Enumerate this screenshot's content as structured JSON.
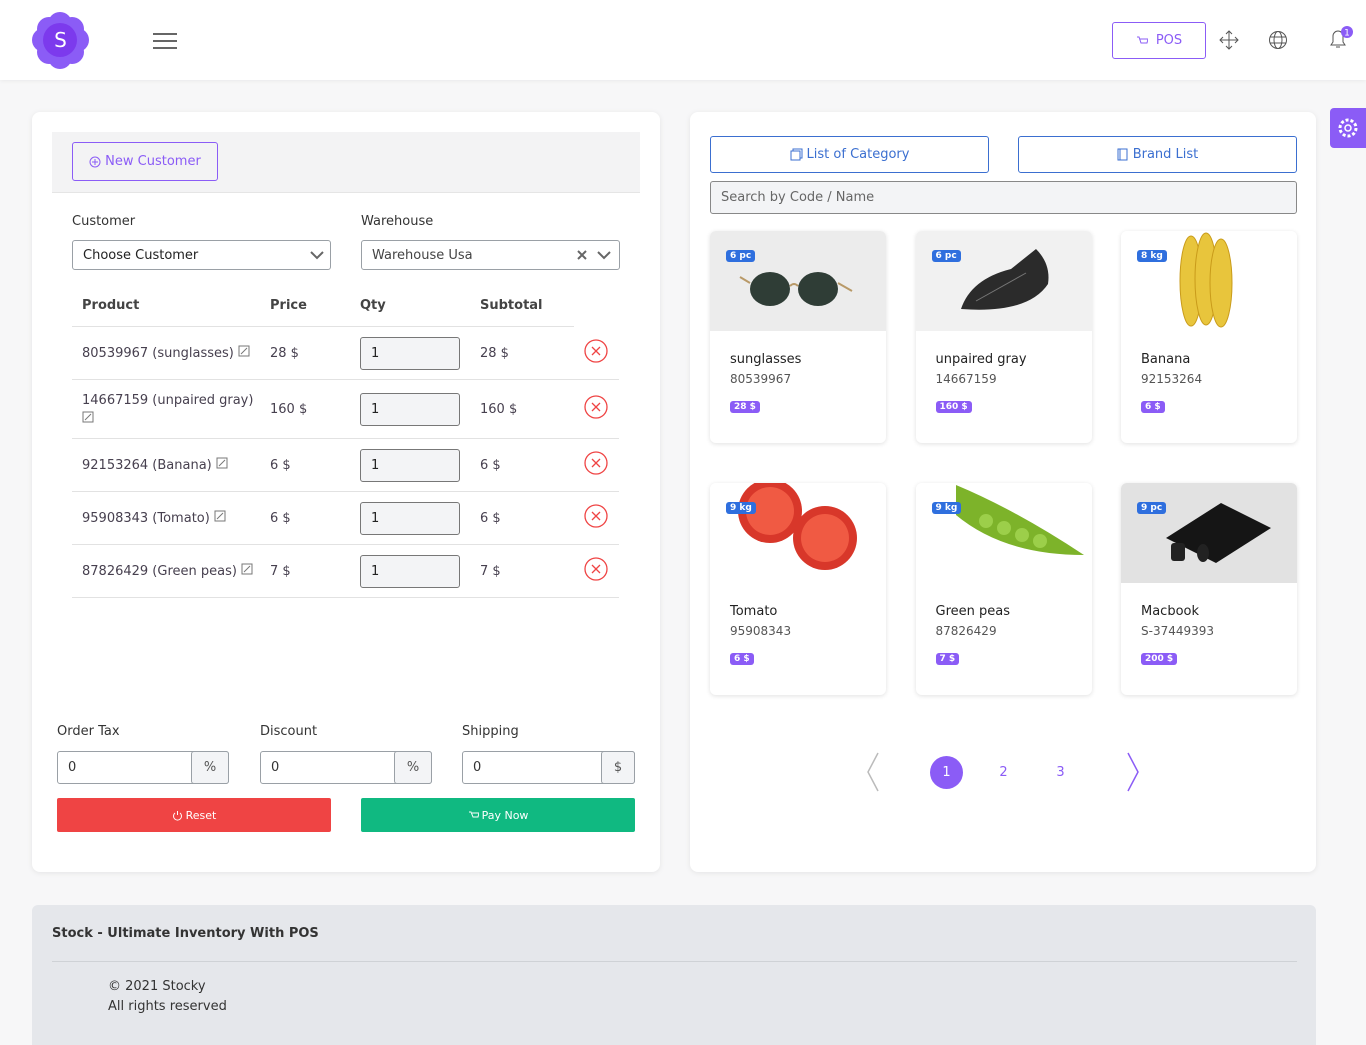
{
  "header": {
    "logo": "S",
    "pos_button": "POS",
    "notification_count": "1"
  },
  "cart": {
    "new_customer": "New Customer",
    "customer_label": "Customer",
    "customer_value": "Choose Customer",
    "warehouse_label": "Warehouse",
    "warehouse_value": "Warehouse Usa",
    "columns": [
      "Product",
      "Price",
      "Qty",
      "Subtotal"
    ],
    "rows": [
      [
        "80539967 (sunglasses)",
        "28 $",
        "1",
        "28 $"
      ],
      [
        "14667159 (unpaired gray)",
        "160 $",
        "1",
        "160 $"
      ],
      [
        "92153264 (Banana)",
        "6 $",
        "1",
        "6 $"
      ],
      [
        "95908343 (Tomato)",
        "6 $",
        "1",
        "6 $"
      ],
      [
        "87826429 (Green peas)",
        "7 $",
        "1",
        "7 $"
      ]
    ],
    "order_tax_label": "Order Tax",
    "order_tax": "0",
    "order_tax_unit": "%",
    "discount_label": "Discount",
    "discount": "0",
    "discount_unit": "%",
    "shipping_label": "Shipping",
    "shipping": "0",
    "shipping_unit": "$",
    "reset": "Reset",
    "pay_now": "Pay Now"
  },
  "catalog": {
    "category_button": "List of Category",
    "brand_button": "Brand List",
    "search_placeholder": "Search by Code / Name",
    "products": [
      {
        "stock": "6 pc",
        "name": "sunglasses",
        "code": "80539967",
        "price": "28 $"
      },
      {
        "stock": "6 pc",
        "name": "unpaired gray",
        "code": "14667159",
        "price": "160 $"
      },
      {
        "stock": "8 kg",
        "name": "Banana",
        "code": "92153264",
        "price": "6 $"
      },
      {
        "stock": "9 kg",
        "name": "Tomato",
        "code": "95908343",
        "price": "6 $"
      },
      {
        "stock": "9 kg",
        "name": "Green peas",
        "code": "87826429",
        "price": "7 $"
      },
      {
        "stock": "9 pc",
        "name": "Macbook",
        "code": "S-37449393",
        "price": "200 $"
      }
    ],
    "pages": [
      "1",
      "2",
      "3"
    ]
  },
  "footer": {
    "title": "Stock - Ultimate Inventory With POS",
    "copyright": "© 2021 Stocky",
    "rights": "All rights reserved"
  }
}
